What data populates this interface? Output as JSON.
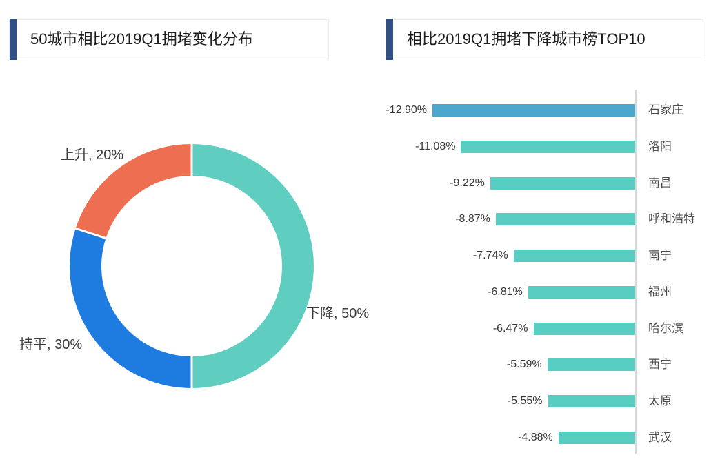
{
  "left_panel": {
    "title": "50城市相比2019Q1拥堵变化分布",
    "accent_color": "#2F4F85"
  },
  "right_panel": {
    "title": "相比2019Q1拥堵下降城市榜TOP10",
    "accent_color": "#2F4F85"
  },
  "chart_data": [
    {
      "type": "pie",
      "subtype": "donut",
      "title": "50城市相比2019Q1拥堵变化分布",
      "start_angle_deg": 0,
      "direction": "clockwise",
      "series": [
        {
          "label": "下降",
          "value": 50,
          "display": "下降, 50%",
          "color": "#5FCDC0"
        },
        {
          "label": "持平",
          "value": 30,
          "display": "持平, 30%",
          "color": "#1E7CE0"
        },
        {
          "label": "上升",
          "value": 20,
          "display": "上升, 20%",
          "color": "#EE6E52"
        }
      ]
    },
    {
      "type": "bar",
      "orientation": "horizontal",
      "title": "相比2019Q1拥堵下降城市榜TOP10",
      "categories": [
        "石家庄",
        "洛阳",
        "南昌",
        "呼和浩特",
        "南宁",
        "福州",
        "哈尔滨",
        "西宁",
        "太原",
        "武汉"
      ],
      "values": [
        -12.9,
        -11.08,
        -9.22,
        -8.87,
        -7.74,
        -6.81,
        -6.47,
        -5.59,
        -5.55,
        -4.88
      ],
      "value_labels": [
        "-12.90%",
        "-11.08%",
        "-9.22%",
        "-8.87%",
        "-7.74%",
        "-6.81%",
        "-6.47%",
        "-5.59%",
        "-5.55%",
        "-4.88%"
      ],
      "bar_colors": {
        "first": "#4BA7CB",
        "rest": "#58CDC1"
      },
      "axis": {
        "zero_position": "right",
        "line_color": "#d9d9d9"
      },
      "xlim": [
        -13.5,
        0
      ],
      "grid": false,
      "legend": false
    }
  ]
}
